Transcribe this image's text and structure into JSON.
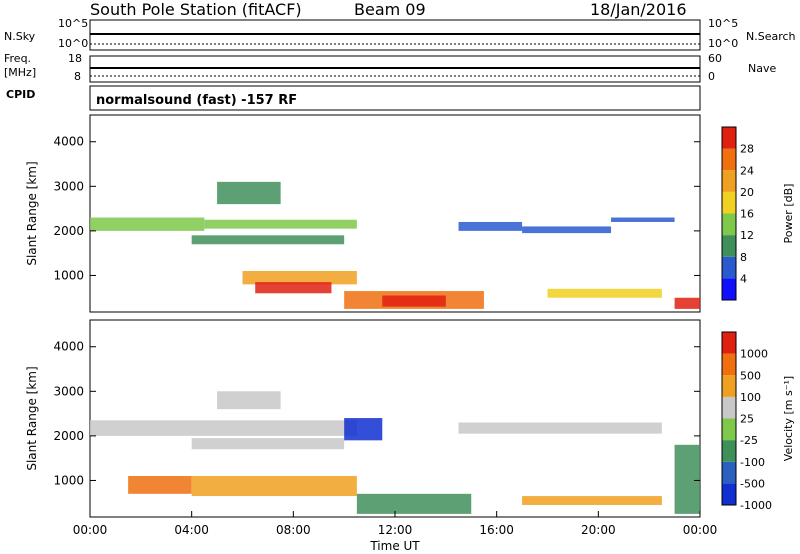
{
  "header": {
    "title": "South Pole Station (fitACF)",
    "beam": "Beam 09",
    "date": "18/Jan/2016"
  },
  "side_labels": {
    "nsky": "N.Sky",
    "nsearch": "N.Search",
    "freq": "Freq.",
    "freq_unit": "[MHz]",
    "nave": "Nave",
    "cpid": "CPID",
    "scale_hi": "10^5",
    "scale_lo": "10^0",
    "freq_hi": "18",
    "freq_lo": "8",
    "nave_hi": "60",
    "nave_lo": "0"
  },
  "mode_text": "normalsound (fast) -157 RF",
  "chart_data": [
    {
      "type": "heatmap",
      "panel": "power",
      "ylabel": "Slant Range [km]",
      "yticks": [
        "1000",
        "2000",
        "3000",
        "4000"
      ],
      "ylim": [
        180,
        4600
      ],
      "xlabel": "Time UT",
      "xticks": [
        "00:00",
        "04:00",
        "08:00",
        "12:00",
        "16:00",
        "20:00",
        "00:00"
      ],
      "xlim_hours": [
        0,
        24
      ],
      "colorbar": {
        "label": "Power [dB]",
        "ticks": [
          "4",
          "8",
          "12",
          "16",
          "20",
          "24",
          "28"
        ],
        "colors": [
          "#1010ff",
          "#2a5ad0",
          "#3f8f5a",
          "#7ec84a",
          "#f0d020",
          "#f0a020",
          "#f07010",
          "#e02010"
        ]
      },
      "regions": [
        {
          "t": [
            0.0,
            4.5
          ],
          "r": [
            2000,
            2300
          ],
          "level": 3
        },
        {
          "t": [
            4.5,
            10.5
          ],
          "r": [
            2050,
            2250
          ],
          "level": 3
        },
        {
          "t": [
            5.0,
            7.5
          ],
          "r": [
            2600,
            3100
          ],
          "level": 2
        },
        {
          "t": [
            4.0,
            10.0
          ],
          "r": [
            1700,
            1900
          ],
          "level": 2
        },
        {
          "t": [
            6.0,
            10.5
          ],
          "r": [
            800,
            1100
          ],
          "level": 5
        },
        {
          "t": [
            6.5,
            9.5
          ],
          "r": [
            600,
            850
          ],
          "level": 7
        },
        {
          "t": [
            10.0,
            15.5
          ],
          "r": [
            250,
            650
          ],
          "level": 6
        },
        {
          "t": [
            11.5,
            14.0
          ],
          "r": [
            300,
            550
          ],
          "level": 7
        },
        {
          "t": [
            14.5,
            17.0
          ],
          "r": [
            2000,
            2200
          ],
          "level": 1
        },
        {
          "t": [
            17.0,
            20.5
          ],
          "r": [
            1950,
            2100
          ],
          "level": 1
        },
        {
          "t": [
            18.0,
            22.5
          ],
          "r": [
            500,
            700
          ],
          "level": 4
        },
        {
          "t": [
            20.5,
            23.0
          ],
          "r": [
            2200,
            2300
          ],
          "level": 1
        },
        {
          "t": [
            23.0,
            24.0
          ],
          "r": [
            250,
            500
          ],
          "level": 7
        }
      ]
    },
    {
      "type": "heatmap",
      "panel": "velocity",
      "ylabel": "Slant Range [km]",
      "yticks": [
        "1000",
        "2000",
        "3000",
        "4000"
      ],
      "ylim": [
        180,
        4600
      ],
      "xlabel": "Time UT",
      "xticks": [
        "00:00",
        "04:00",
        "08:00",
        "12:00",
        "16:00",
        "20:00",
        "00:00"
      ],
      "xlim_hours": [
        0,
        24
      ],
      "colorbar": {
        "label": "Velocity [m s⁻¹]",
        "ticks": [
          "1000",
          "500",
          "100",
          "25",
          "-25",
          "-100",
          "-500",
          "-1000"
        ],
        "colors": [
          "#1030d0",
          "#2a60c0",
          "#3f8f5a",
          "#7ec84a",
          "#c8c8c8",
          "#f0a020",
          "#f07010",
          "#e02010"
        ]
      },
      "regions": [
        {
          "t": [
            0.0,
            10.5
          ],
          "r": [
            2000,
            2350
          ],
          "level": 4
        },
        {
          "t": [
            4.0,
            10.0
          ],
          "r": [
            1700,
            1950
          ],
          "level": 4
        },
        {
          "t": [
            5.0,
            7.5
          ],
          "r": [
            2600,
            3000
          ],
          "level": 4
        },
        {
          "t": [
            1.5,
            4.0
          ],
          "r": [
            700,
            1100
          ],
          "level": 6
        },
        {
          "t": [
            4.0,
            10.5
          ],
          "r": [
            650,
            1100
          ],
          "level": 5
        },
        {
          "t": [
            10.0,
            11.5
          ],
          "r": [
            1900,
            2400
          ],
          "level": 0
        },
        {
          "t": [
            10.5,
            15.0
          ],
          "r": [
            250,
            700
          ],
          "level": 2
        },
        {
          "t": [
            14.5,
            22.5
          ],
          "r": [
            2050,
            2300
          ],
          "level": 4
        },
        {
          "t": [
            17.0,
            22.5
          ],
          "r": [
            450,
            650
          ],
          "level": 5
        },
        {
          "t": [
            23.0,
            24.0
          ],
          "r": [
            250,
            1800
          ],
          "level": 2
        }
      ]
    }
  ]
}
